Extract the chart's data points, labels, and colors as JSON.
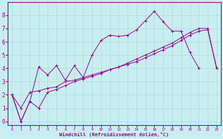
{
  "title": "",
  "xlabel": "Windchill (Refroidissement éolien,°C)",
  "ylabel": "",
  "bg_color": "#c8eef0",
  "grid_color": "#aadddd",
  "line_color": "#990099",
  "xlim": [
    -0.5,
    23.5
  ],
  "ylim": [
    -0.3,
    9.0
  ],
  "xticks": [
    0,
    1,
    2,
    3,
    4,
    5,
    6,
    7,
    8,
    9,
    10,
    11,
    12,
    13,
    14,
    15,
    16,
    17,
    18,
    19,
    20,
    21,
    22,
    23
  ],
  "yticks": [
    0,
    1,
    2,
    3,
    4,
    5,
    6,
    7,
    8
  ],
  "line1_x": [
    0,
    1,
    2,
    3,
    4,
    5,
    6,
    7,
    8,
    9,
    10,
    11,
    12,
    13,
    14,
    15,
    16,
    17,
    18,
    19,
    20,
    21
  ],
  "line1_y": [
    2.0,
    0.0,
    1.5,
    4.1,
    3.5,
    4.2,
    3.1,
    4.2,
    3.3,
    5.0,
    6.1,
    6.5,
    6.4,
    6.5,
    6.9,
    7.6,
    8.3,
    7.5,
    6.8,
    6.8,
    5.2,
    4.0
  ],
  "line2_x": [
    0,
    1,
    2,
    3,
    4,
    5,
    6,
    7,
    8,
    9,
    10,
    11,
    12,
    13,
    14,
    15,
    16,
    17,
    18,
    19,
    20,
    21,
    22,
    23
  ],
  "line2_y": [
    2.0,
    1.0,
    2.2,
    2.3,
    2.5,
    2.6,
    3.0,
    3.1,
    3.3,
    3.5,
    3.7,
    3.9,
    4.1,
    4.3,
    4.5,
    4.8,
    5.1,
    5.4,
    5.7,
    6.1,
    6.5,
    6.8,
    6.9,
    4.0
  ],
  "line3_x": [
    0,
    1,
    2,
    3,
    4,
    5,
    6,
    7,
    8,
    9,
    10,
    11,
    12,
    13,
    14,
    15,
    16,
    17,
    18,
    19,
    20,
    21,
    22,
    23
  ],
  "line3_y": [
    2.0,
    0.0,
    1.5,
    1.0,
    2.2,
    2.4,
    2.7,
    3.0,
    3.2,
    3.4,
    3.6,
    3.9,
    4.1,
    4.4,
    4.7,
    5.0,
    5.3,
    5.6,
    5.9,
    6.3,
    6.7,
    7.0,
    7.0,
    4.0
  ]
}
